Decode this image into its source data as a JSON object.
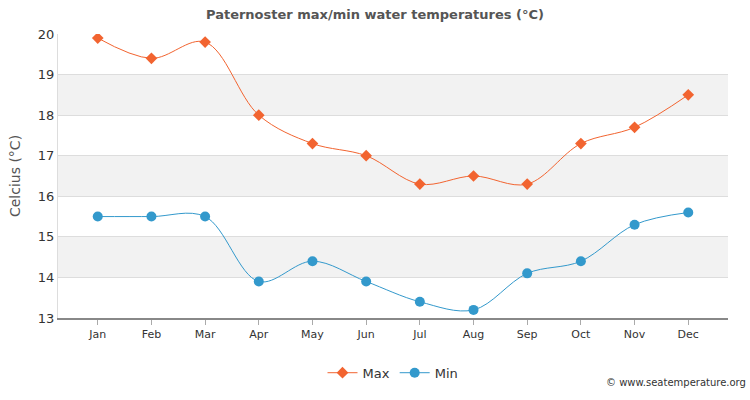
{
  "chart_data": {
    "type": "line",
    "title": "Paternoster max/min water temperatures (°C)",
    "y_label": "Celcius (°C)",
    "categories": [
      "Jan",
      "Feb",
      "Mar",
      "Apr",
      "May",
      "Jun",
      "Jul",
      "Aug",
      "Sep",
      "Oct",
      "Nov",
      "Dec"
    ],
    "series": [
      {
        "name": "Max",
        "color": "#f26430",
        "marker": "diamond",
        "line_style": "solid",
        "values": [
          19.9,
          19.4,
          19.8,
          18.0,
          17.3,
          17.0,
          16.3,
          16.5,
          16.3,
          17.3,
          17.7,
          18.5
        ]
      },
      {
        "name": "Min",
        "color": "#3399cc",
        "marker": "circle",
        "line_style": "solid",
        "values": [
          15.5,
          15.5,
          15.5,
          13.9,
          14.4,
          13.9,
          13.4,
          13.2,
          14.1,
          14.4,
          15.3,
          15.6
        ]
      }
    ],
    "ylim": [
      13,
      20
    ],
    "yticks": [
      13,
      14,
      15,
      16,
      17,
      18,
      19,
      20
    ],
    "grid": true,
    "legend": "bottom",
    "annotations": [
      "© www.seatemperature.org"
    ]
  }
}
